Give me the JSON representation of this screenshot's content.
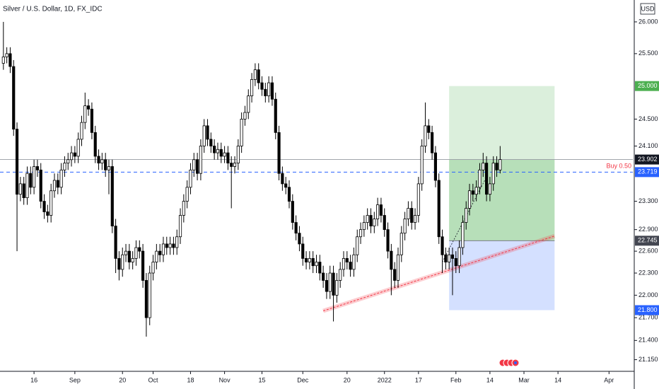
{
  "chart_data": {
    "type": "candlestick",
    "title": "Silver / U.S. Dollar, 1D, FX_IDC",
    "currency": "USD",
    "log_scale": true,
    "grid": false,
    "up_color": "#ffffff",
    "down_color": "#000000",
    "xlim": [
      -1,
      185
    ],
    "ylim": [
      21.0,
      26.35
    ],
    "yticks": [
      {
        "value": 26,
        "label": "26.000"
      },
      {
        "value": 25.5,
        "label": "25.500"
      },
      {
        "value": 24.5,
        "label": "24.500"
      },
      {
        "value": 24.1,
        "label": "24.100"
      },
      {
        "value": 23.3,
        "label": "23.300"
      },
      {
        "value": 22.9,
        "label": "22.900"
      },
      {
        "value": 22.6,
        "label": "22.600"
      },
      {
        "value": 22.3,
        "label": "22.300"
      },
      {
        "value": 22,
        "label": "22.000"
      },
      {
        "value": 21.7,
        "label": "21.700"
      },
      {
        "value": 21.4,
        "label": "21.400"
      },
      {
        "value": 21.15,
        "label": "21.150"
      }
    ],
    "xticks": [
      {
        "value": 9,
        "label": "16"
      },
      {
        "value": 21,
        "label": "Sep"
      },
      {
        "value": 35,
        "label": "20"
      },
      {
        "value": 44,
        "label": "Oct"
      },
      {
        "value": 55,
        "label": "18"
      },
      {
        "value": 65,
        "label": "Nov"
      },
      {
        "value": 76,
        "label": "15"
      },
      {
        "value": 88,
        "label": "Dec"
      },
      {
        "value": 101,
        "label": "20"
      },
      {
        "value": 112,
        "label": "2022"
      },
      {
        "value": 122,
        "label": "17"
      },
      {
        "value": 133,
        "label": "Feb"
      },
      {
        "value": 143,
        "label": "14"
      },
      {
        "value": 153,
        "label": "Mar"
      },
      {
        "value": 163,
        "label": "14"
      },
      {
        "value": 178,
        "label": "Apr"
      }
    ],
    "open": [
      25.35,
      25.45,
      25.5,
      25.3,
      24.35,
      23.4,
      23.55,
      23.35,
      23.7,
      23.5,
      23.8,
      23.75,
      23.3,
      23.15,
      23.1,
      23.45,
      23.6,
      23.5,
      23.75,
      23.85,
      23.9,
      24.0,
      23.95,
      24.2,
      24.45,
      24.7,
      24.65,
      24.3,
      23.95,
      23.85,
      23.9,
      23.75,
      23.8,
      22.95,
      22.5,
      22.35,
      22.55,
      22.6,
      22.45,
      22.5,
      22.65,
      22.6,
      22.2,
      21.7,
      22.3,
      22.45,
      22.6,
      22.55,
      22.7,
      22.65,
      22.7,
      22.65,
      22.8,
      23.1,
      23.3,
      23.5,
      23.75,
      23.9,
      23.7,
      24.1,
      24.4,
      24.2,
      24.1,
      24.0,
      24.05,
      23.95,
      24.0,
      23.85,
      23.8,
      23.85,
      24.1,
      24.5,
      24.6,
      24.85,
      25.1,
      25.25,
      25.05,
      24.95,
      24.85,
      25.05,
      24.8,
      24.3,
      23.7,
      23.55,
      23.5,
      23.3,
      23.0,
      22.85,
      22.7,
      22.5,
      22.45,
      22.5,
      22.4,
      22.45,
      22.3,
      22.2,
      22.05,
      22.3,
      22.0,
      22.2,
      22.35,
      22.5,
      22.45,
      22.35,
      22.55,
      22.8,
      22.9,
      23.0,
      23.1,
      22.95,
      23.05,
      23.25,
      23.1,
      22.9,
      22.6,
      22.35,
      22.2,
      22.55,
      22.85,
      23.05,
      23.2,
      23.0,
      23.1,
      23.55,
      24.1,
      24.4,
      24.3,
      24.0,
      23.6,
      22.8,
      22.55,
      22.45,
      22.55,
      22.5,
      22.4,
      22.65,
      23.0,
      23.2,
      23.45,
      23.4,
      23.5,
      23.75,
      23.85,
      23.4,
      23.55,
      23.85,
      23.75
    ],
    "high": [
      26.0,
      25.6,
      25.6,
      25.4,
      24.45,
      23.65,
      23.65,
      23.8,
      23.8,
      23.9,
      23.9,
      23.85,
      23.4,
      23.25,
      23.55,
      23.7,
      23.7,
      23.85,
      23.95,
      24.0,
      24.1,
      24.1,
      24.3,
      24.55,
      24.9,
      24.8,
      24.75,
      24.4,
      24.05,
      24.0,
      24.0,
      23.9,
      23.9,
      23.05,
      22.6,
      22.65,
      22.7,
      22.7,
      22.6,
      22.75,
      22.75,
      22.7,
      22.3,
      22.4,
      22.55,
      22.7,
      22.7,
      22.8,
      22.8,
      22.8,
      22.8,
      22.9,
      23.2,
      23.4,
      23.6,
      23.85,
      24.0,
      24.0,
      24.2,
      24.5,
      24.5,
      24.3,
      24.2,
      24.15,
      24.15,
      24.1,
      24.1,
      23.95,
      23.95,
      24.2,
      24.6,
      24.7,
      24.95,
      25.2,
      25.35,
      25.35,
      25.15,
      25.05,
      25.15,
      25.15,
      24.9,
      24.4,
      23.8,
      23.65,
      23.6,
      23.4,
      23.1,
      22.95,
      22.8,
      22.6,
      22.6,
      22.6,
      22.55,
      22.55,
      22.4,
      22.3,
      22.4,
      22.4,
      22.3,
      22.45,
      22.6,
      22.6,
      22.55,
      22.65,
      22.9,
      23.0,
      23.1,
      23.2,
      23.2,
      23.15,
      23.35,
      23.35,
      23.2,
      23.0,
      22.7,
      22.45,
      22.65,
      22.95,
      23.15,
      23.3,
      23.3,
      23.2,
      23.65,
      24.2,
      24.75,
      24.5,
      24.4,
      24.1,
      23.7,
      22.9,
      22.65,
      22.65,
      22.65,
      22.6,
      22.75,
      23.1,
      23.3,
      23.55,
      23.55,
      23.6,
      23.85,
      24.0,
      23.95,
      23.65,
      23.95,
      23.95,
      24.1
    ],
    "low": [
      25.25,
      25.35,
      25.2,
      24.25,
      22.6,
      23.3,
      23.25,
      23.25,
      23.4,
      23.4,
      23.65,
      23.2,
      23.05,
      23.0,
      23.0,
      23.35,
      23.4,
      23.4,
      23.65,
      23.75,
      23.8,
      23.85,
      23.85,
      24.1,
      24.35,
      24.55,
      24.2,
      23.85,
      23.75,
      23.75,
      23.65,
      23.4,
      22.85,
      22.3,
      22.2,
      22.25,
      22.45,
      22.35,
      22.35,
      22.4,
      22.5,
      22.1,
      21.45,
      21.6,
      22.2,
      22.35,
      22.45,
      22.45,
      22.55,
      22.55,
      22.55,
      22.55,
      22.7,
      23.0,
      23.2,
      23.4,
      23.65,
      23.6,
      23.6,
      24.0,
      24.1,
      24.0,
      23.9,
      23.9,
      23.85,
      23.85,
      23.75,
      23.2,
      23.7,
      23.75,
      24.0,
      24.4,
      24.5,
      24.75,
      25.0,
      24.95,
      24.85,
      24.75,
      24.75,
      24.7,
      24.2,
      23.6,
      23.45,
      23.4,
      23.2,
      22.9,
      22.75,
      22.6,
      22.4,
      22.35,
      22.35,
      22.3,
      22.3,
      22.2,
      22.1,
      21.95,
      21.95,
      21.65,
      21.9,
      22.1,
      22.25,
      22.35,
      22.25,
      22.25,
      22.45,
      22.7,
      22.8,
      22.9,
      22.85,
      22.85,
      22.95,
      23.0,
      22.8,
      22.5,
      22.0,
      22.1,
      22.1,
      22.45,
      22.75,
      22.95,
      22.9,
      22.9,
      23.0,
      23.45,
      24.0,
      24.2,
      23.9,
      23.5,
      22.7,
      22.3,
      22.35,
      22.35,
      22.0,
      22.3,
      22.3,
      22.55,
      22.9,
      23.1,
      23.3,
      23.3,
      23.4,
      23.65,
      23.3,
      23.3,
      23.45,
      23.65,
      23.7
    ],
    "close": [
      25.45,
      25.5,
      25.3,
      24.35,
      23.4,
      23.55,
      23.35,
      23.7,
      23.5,
      23.8,
      23.75,
      23.3,
      23.15,
      23.1,
      23.45,
      23.6,
      23.5,
      23.75,
      23.85,
      23.9,
      24.0,
      23.95,
      24.2,
      24.45,
      24.7,
      24.65,
      24.3,
      23.95,
      23.85,
      23.9,
      23.75,
      23.8,
      22.95,
      22.5,
      22.35,
      22.55,
      22.6,
      22.45,
      22.5,
      22.65,
      22.6,
      22.2,
      21.7,
      22.3,
      22.45,
      22.6,
      22.55,
      22.7,
      22.65,
      22.7,
      22.65,
      22.8,
      23.1,
      23.3,
      23.5,
      23.75,
      23.9,
      23.7,
      24.1,
      24.4,
      24.2,
      24.1,
      24.0,
      24.05,
      23.95,
      24.0,
      23.85,
      23.8,
      23.85,
      24.1,
      24.5,
      24.6,
      24.85,
      25.1,
      25.25,
      25.05,
      24.95,
      24.85,
      25.05,
      24.8,
      24.3,
      23.7,
      23.55,
      23.5,
      23.3,
      23.0,
      22.85,
      22.7,
      22.5,
      22.45,
      22.5,
      22.4,
      22.45,
      22.3,
      22.2,
      22.05,
      22.3,
      22.0,
      22.2,
      22.35,
      22.5,
      22.45,
      22.35,
      22.55,
      22.8,
      22.9,
      23.0,
      23.1,
      22.95,
      23.05,
      23.25,
      23.1,
      22.9,
      22.6,
      22.35,
      22.2,
      22.55,
      22.85,
      23.05,
      23.2,
      23.0,
      23.1,
      23.55,
      24.1,
      24.4,
      24.3,
      24.0,
      23.6,
      22.8,
      22.55,
      22.45,
      22.55,
      22.5,
      22.4,
      22.65,
      23.0,
      23.2,
      23.45,
      23.4,
      23.5,
      23.75,
      23.85,
      23.4,
      23.55,
      23.85,
      23.75,
      23.902
    ],
    "last_price": {
      "value": 23.902,
      "label": "23.902"
    },
    "limit_order": {
      "value": 23.719,
      "label": "23.719",
      "text": "Buy 0.50"
    },
    "position": {
      "x": [
        131,
        162
      ],
      "target": {
        "value": 25,
        "label": "25.000"
      },
      "entry": {
        "value": 22.745,
        "label": "22.745"
      },
      "stop": {
        "value": 21.8,
        "label": "21.800"
      }
    },
    "trendline": {
      "x": [
        94,
        162
      ],
      "y": [
        21.79,
        22.81
      ]
    },
    "projection_line": {
      "x": [
        129,
        142
      ],
      "y": [
        22.45,
        23.65
      ]
    }
  }
}
